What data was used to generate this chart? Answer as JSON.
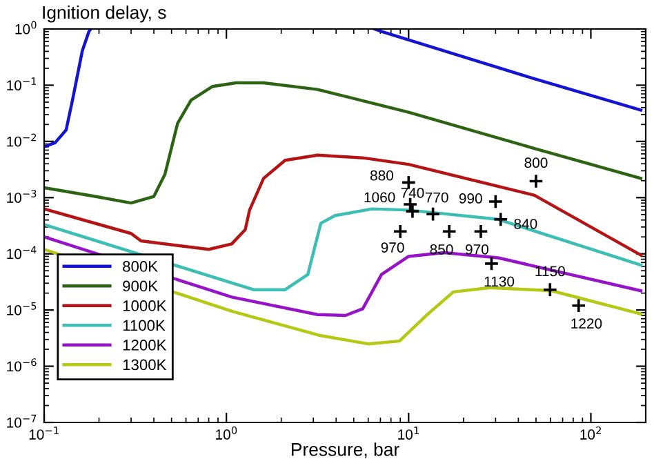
{
  "chart_data": {
    "type": "line",
    "ylabel": "Ignition delay, s",
    "xlabel": "Pressure, bar",
    "log": "xy",
    "xlim": [
      0.1,
      200
    ],
    "ylim": [
      1e-07,
      1
    ],
    "xticks": [
      {
        "value": 0.1,
        "label": "10$^{−1}$"
      },
      {
        "value": 1,
        "label": "10$^{0}$"
      },
      {
        "value": 10,
        "label": "10$^{1}$"
      },
      {
        "value": 100,
        "label": "10$^{2}$"
      }
    ],
    "yticks": [
      {
        "value": 1e-07,
        "label": "10$^{−7}$"
      },
      {
        "value": 1e-06,
        "label": "10$^{−6}$"
      },
      {
        "value": 1e-05,
        "label": "10$^{−5}$"
      },
      {
        "value": 0.0001,
        "label": "10$^{−4}$"
      },
      {
        "value": 0.001,
        "label": "10$^{−3}$"
      },
      {
        "value": 0.01,
        "label": "10$^{−2}$"
      },
      {
        "value": 0.1,
        "label": "10$^{−1}$"
      },
      {
        "value": 1,
        "label": "10$^{0}$"
      }
    ],
    "grid": false,
    "legend": "bottom left",
    "line_style": "solid",
    "marker": "none",
    "series": [
      {
        "name": "800K",
        "color": "#1414d2",
        "x": [
          0.1,
          0.115,
          0.132,
          0.143,
          0.162,
          0.176,
          0.18,
          null,
          6.5,
          7.1,
          20,
          49,
          188
        ],
        "values": [
          0.008,
          0.0095,
          0.016,
          0.054,
          0.41,
          0.9,
          1,
          null,
          1,
          0.9,
          0.32,
          0.13,
          0.036
        ]
      },
      {
        "name": "900K",
        "color": "#2d6414",
        "x": [
          0.1,
          0.19,
          0.3,
          0.4,
          0.46,
          0.54,
          0.64,
          0.84,
          1.13,
          1.6,
          3.16,
          10,
          49,
          188
        ],
        "values": [
          0.0015,
          0.00105,
          0.0008,
          0.00105,
          0.0026,
          0.021,
          0.054,
          0.095,
          0.11,
          0.11,
          0.084,
          0.033,
          0.0075,
          0.0022
        ]
      },
      {
        "name": "1000K",
        "color": "#b41414",
        "x": [
          0.1,
          0.3,
          0.34,
          0.8,
          1.07,
          1.27,
          1.34,
          1.6,
          2.1,
          3.16,
          5.6,
          10,
          49,
          188
        ],
        "values": [
          0.00063,
          0.00023,
          0.00017,
          0.00012,
          0.00015,
          0.00027,
          0.0006,
          0.0022,
          0.0046,
          0.0057,
          0.0051,
          0.0039,
          0.0011,
          9.5e-05
        ]
      },
      {
        "name": "1100K",
        "color": "#3cbeb4",
        "x": [
          0.1,
          1.41,
          2.1,
          2.8,
          3.1,
          3.3,
          3.95,
          6.3,
          10,
          31,
          188
        ],
        "values": [
          0.00033,
          2.3e-05,
          2.3e-05,
          4.3e-05,
          0.00016,
          0.00035,
          0.00048,
          0.00063,
          0.0006,
          0.00041,
          6.3e-05
        ]
      },
      {
        "name": "1200K",
        "color": "#9614c8",
        "x": [
          0.1,
          1.07,
          3.16,
          4.5,
          5.6,
          7.1,
          10,
          15.6,
          31,
          188
        ],
        "values": [
          0.0002,
          1.7e-05,
          8.3e-06,
          8e-06,
          1.05e-05,
          4.3e-05,
          9e-05,
          0.000105,
          8.5e-05,
          2.2e-05
        ]
      },
      {
        "name": "1300K",
        "color": "#b4c814",
        "x": [
          0.1,
          1.07,
          3.3,
          6,
          8.9,
          12.5,
          17.6,
          28,
          61,
          188
        ],
        "values": [
          0.00012,
          9.5e-06,
          3.5e-06,
          2.5e-06,
          2.8e-06,
          8e-06,
          2.1e-05,
          2.5e-05,
          2.2e-05,
          8.5e-06
        ]
      },
      {
        "type": "scatter",
        "marker": "cross",
        "color": "#000000",
        "x": [
          10,
          50,
          10.2,
          10.5,
          13.6,
          30,
          32,
          9,
          16.7,
          24.9,
          28.5,
          59.7,
          85.7
        ],
        "values": [
          0.00186,
          0.00196,
          0.00076,
          0.00057,
          0.00051,
          0.00085,
          0.00041,
          0.00025,
          0.00025,
          0.00025,
          6.7e-05,
          2.3e-05,
          1.2e-05
        ]
      }
    ],
    "annotations": [
      {
        "text": "880",
        "x": 10,
        "y": 0.00186
      },
      {
        "text": "800",
        "x": 50,
        "y": 0.00196
      },
      {
        "text": "1060",
        "x": 10.2,
        "y": 0.00076
      },
      {
        "text": "740",
        "x": 10.5,
        "y": 0.00057
      },
      {
        "text": "770",
        "x": 13.6,
        "y": 0.00051
      },
      {
        "text": "990",
        "x": 30,
        "y": 0.00085
      },
      {
        "text": "840",
        "x": 32,
        "y": 0.00041
      },
      {
        "text": "970",
        "x": 9,
        "y": 0.00025
      },
      {
        "text": "850",
        "x": 16.7,
        "y": 0.00025
      },
      {
        "text": "970",
        "x": 24.9,
        "y": 0.00025
      },
      {
        "text": "1130",
        "x": 28.5,
        "y": 6.7e-05
      },
      {
        "text": "1150",
        "x": 59.7,
        "y": 2.3e-05
      },
      {
        "text": "1220",
        "x": 85.7,
        "y": 1.2e-05
      }
    ]
  }
}
